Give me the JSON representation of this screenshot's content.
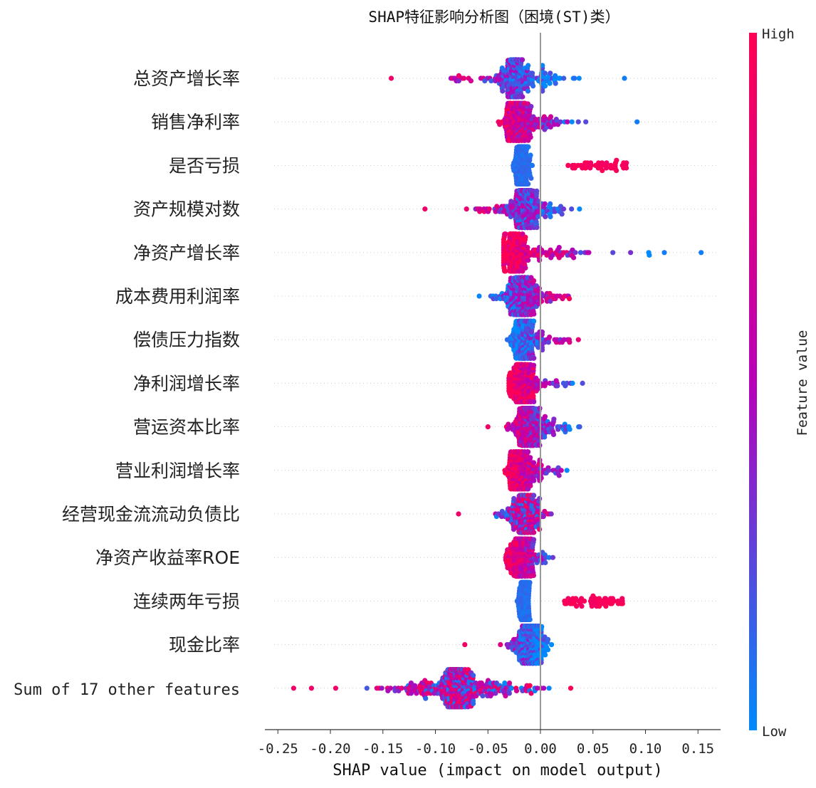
{
  "chart_data": {
    "type": "scatter",
    "subtype": "shap-beeswarm",
    "title": "SHAP特征影响分析图（困境(ST)类）",
    "xlabel": "SHAP value (impact on model output)",
    "xlim": [
      -0.25,
      0.17
    ],
    "xticks": [
      -0.25,
      -0.2,
      -0.15,
      -0.1,
      -0.05,
      0.0,
      0.05,
      0.1,
      0.15
    ],
    "xtick_labels": [
      "-0.25",
      "-0.20",
      "-0.15",
      "-0.10",
      "-0.05",
      "0.00",
      "0.05",
      "0.10",
      "0.15"
    ],
    "colorbar": {
      "label": "Feature value",
      "high": "High",
      "low": "Low",
      "low_color": "#008afb",
      "mid_color": "#b800b8",
      "high_color": "#ff0052"
    },
    "features": [
      {
        "name": "总资产增长率",
        "range": [
          -0.145,
          0.082
        ],
        "center": -0.025,
        "clusters": [
          [
            -0.14,
            0.85
          ],
          [
            -0.05,
            0.75
          ],
          [
            -0.02,
            0.7
          ]
        ],
        "color_low_side": "high",
        "outliers": [
          -0.142,
          0.08
        ]
      },
      {
        "name": "销售净利率",
        "range": [
          -0.055,
          0.092
        ],
        "center": -0.022,
        "color_low_side": "high",
        "outliers": [
          0.092
        ]
      },
      {
        "name": "是否亏损",
        "range": [
          -0.03,
          0.08
        ],
        "center": -0.018,
        "color_low_side": "low",
        "split": true,
        "high_range": [
          0.025,
          0.082
        ],
        "low_range": [
          -0.03,
          -0.005
        ]
      },
      {
        "name": "资产规模对数",
        "range": [
          -0.11,
          0.085
        ],
        "center": -0.015,
        "color_low_side": "high",
        "outliers": [
          -0.11
        ]
      },
      {
        "name": "净资产增长率",
        "range": [
          -0.035,
          0.153
        ],
        "center": -0.025,
        "color_low_side": "high",
        "outliers": [
          0.118,
          0.153
        ]
      },
      {
        "name": "成本费用利润率",
        "range": [
          -0.075,
          0.077
        ],
        "center": -0.018,
        "color_low_side": "low"
      },
      {
        "name": "偿债压力指数",
        "range": [
          -0.038,
          0.07
        ],
        "center": -0.015,
        "color_low_side": "low"
      },
      {
        "name": "净利润增长率",
        "range": [
          -0.03,
          0.083
        ],
        "center": -0.018,
        "color_low_side": "high"
      },
      {
        "name": "营运资本比率",
        "range": [
          -0.05,
          0.065
        ],
        "center": -0.012,
        "color_low_side": "high",
        "outliers": [
          -0.05
        ]
      },
      {
        "name": "营业利润增长率",
        "range": [
          -0.035,
          0.07
        ],
        "center": -0.02,
        "color_low_side": "high"
      },
      {
        "name": "经营现金流流动负债比",
        "range": [
          -0.078,
          0.036
        ],
        "center": -0.015,
        "color_low_side": "mixed",
        "outliers": [
          -0.078
        ]
      },
      {
        "name": "净资产收益率ROE",
        "range": [
          -0.033,
          0.04
        ],
        "center": -0.02,
        "color_low_side": "high"
      },
      {
        "name": "连续两年亏损",
        "range": [
          -0.025,
          0.08
        ],
        "center": -0.008,
        "color_low_side": "low",
        "split": true,
        "high_range": [
          0.022,
          0.08
        ],
        "low_range": [
          -0.025,
          -0.005
        ]
      },
      {
        "name": "现金比率",
        "range": [
          -0.072,
          0.03
        ],
        "center": -0.01,
        "color_low_side": "high",
        "outliers": [
          -0.072
        ]
      },
      {
        "name": "Sum of 17 other features",
        "range": [
          -0.235,
          0.08
        ],
        "center": -0.08,
        "color_low_side": "mixed",
        "outliers": [
          -0.235,
          -0.218,
          -0.195
        ]
      }
    ]
  }
}
